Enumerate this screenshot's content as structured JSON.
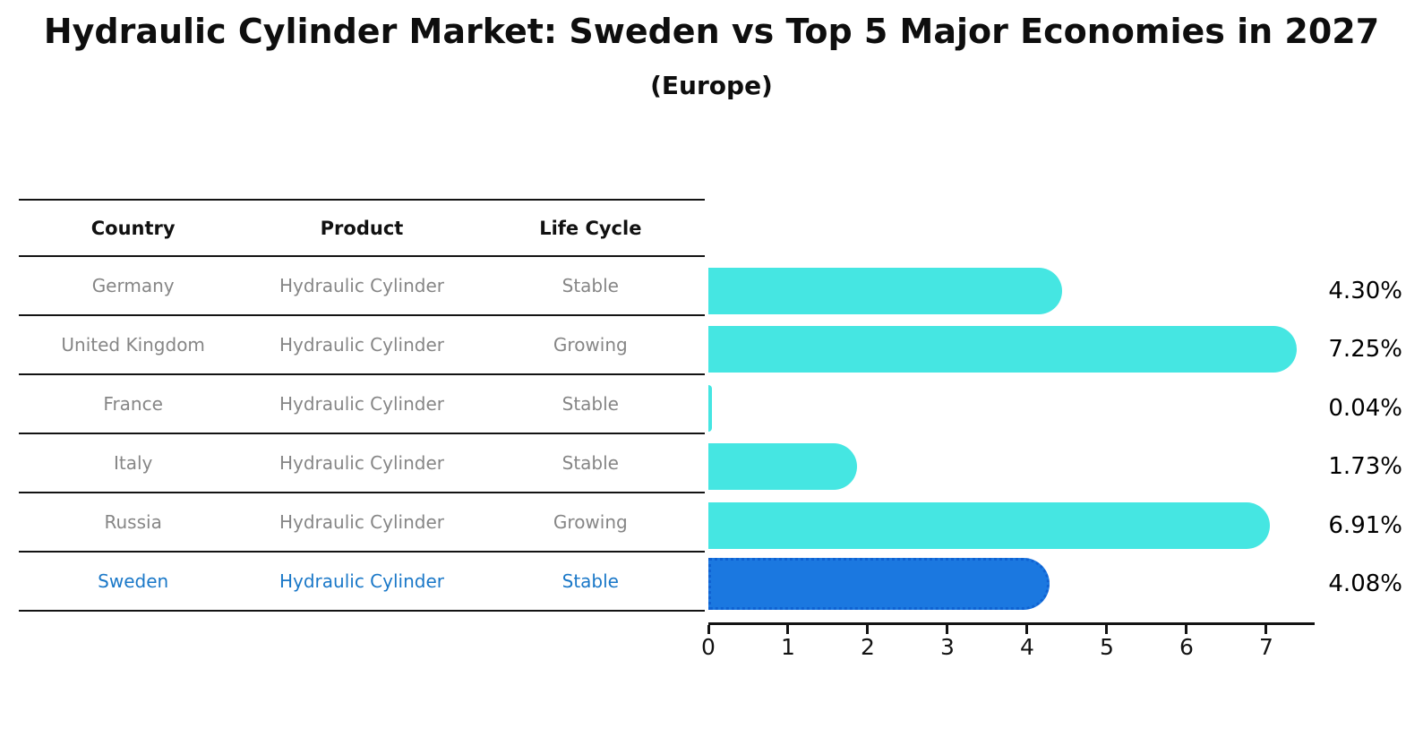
{
  "title": "Hydraulic Cylinder Market: Sweden vs Top 5 Major Economies in 2027",
  "subtitle": "(Europe)",
  "table": {
    "headers": [
      "Country",
      "Product",
      "Life Cycle"
    ],
    "rows": [
      {
        "country": "Germany",
        "product": "Hydraulic Cylinder",
        "life_cycle": "Stable",
        "highlight": false
      },
      {
        "country": "United Kingdom",
        "product": "Hydraulic Cylinder",
        "life_cycle": "Growing",
        "highlight": false
      },
      {
        "country": "France",
        "product": "Hydraulic Cylinder",
        "life_cycle": "Stable",
        "highlight": false
      },
      {
        "country": "Italy",
        "product": "Hydraulic Cylinder",
        "life_cycle": "Stable",
        "highlight": false
      },
      {
        "country": "Russia",
        "product": "Hydraulic Cylinder",
        "life_cycle": "Growing",
        "highlight": false
      },
      {
        "country": "Sweden",
        "product": "Hydraulic Cylinder",
        "life_cycle": "Stable",
        "highlight": true
      }
    ]
  },
  "chart_data": {
    "type": "bar",
    "orientation": "horizontal",
    "title": "Hydraulic Cylinder Market: Sweden vs Top 5 Major Economies in 2027 (Europe)",
    "categories": [
      "Germany",
      "United Kingdom",
      "France",
      "Italy",
      "Russia",
      "Sweden"
    ],
    "values": [
      4.3,
      7.25,
      0.04,
      1.73,
      6.91,
      4.08
    ],
    "value_labels": [
      "4.30%",
      "7.25%",
      "0.04%",
      "1.73%",
      "6.91%",
      "4.08%"
    ],
    "highlight_category": "Sweden",
    "xlabel": "",
    "ylabel": "",
    "xlim": [
      0,
      7.61
    ],
    "xticks": [
      0,
      1,
      2,
      3,
      4,
      5,
      6,
      7
    ],
    "grid": false,
    "legend": false
  },
  "colors": {
    "bar_default": "#45e6e2",
    "bar_highlight": "#1b78e0",
    "bar_highlight_border": "#0f62d2",
    "highlight_text": "#1a78c8",
    "cell_text": "#868686",
    "header_text": "#111111",
    "axis": "#131313",
    "value_label_text": "#000000"
  }
}
